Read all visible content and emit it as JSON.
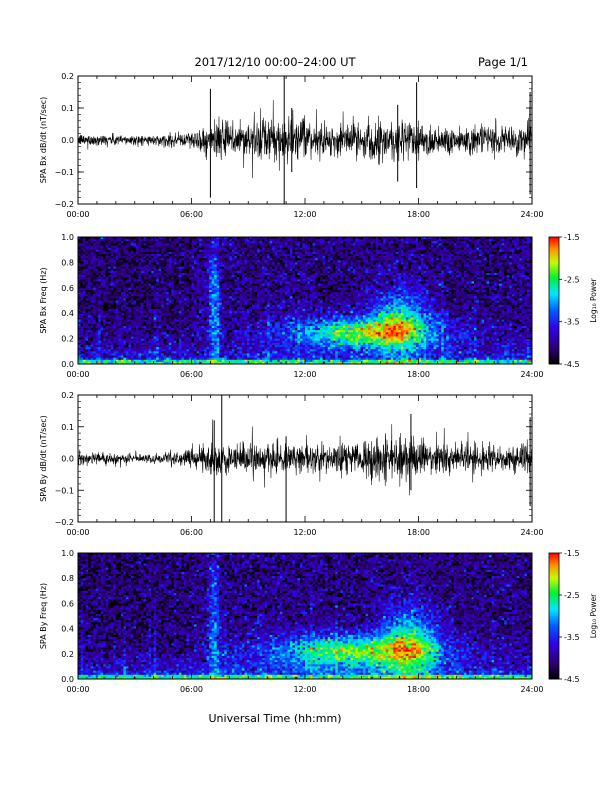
{
  "header": {
    "title": "2017/12/10   00:00–24:00 UT",
    "page": "Page 1/1"
  },
  "xlabel": "Universal Time (hh:mm)",
  "x_tick_labels": [
    "00:00",
    "06:00",
    "12:00",
    "18:00",
    "24:00"
  ],
  "chart_data": [
    {
      "type": "line",
      "ylabel": "SPA Bx dB/dt (nT/sec)",
      "xlim": [
        0,
        24
      ],
      "ylim": [
        -0.2,
        0.2
      ],
      "y_tick_labels": [
        "0.2",
        "0.1",
        "0.0",
        "−0.1",
        "−0.2"
      ],
      "series": [
        {
          "x": [
            0,
            2,
            4,
            6,
            7.3,
            9,
            10.9,
            12,
            13.5,
            15,
            16,
            17,
            17.7,
            19,
            21,
            22.5,
            24
          ],
          "amplitude": [
            0.02,
            0.02,
            0.015,
            0.03,
            0.06,
            0.07,
            0.08,
            0.06,
            0.05,
            0.06,
            0.07,
            0.08,
            0.07,
            0.05,
            0.05,
            0.04,
            0.06
          ],
          "spikes": [
            {
              "x": 7.0,
              "min": -0.18,
              "max": 0.16
            },
            {
              "x": 10.9,
              "min": -0.2,
              "max": 0.2
            },
            {
              "x": 11.3,
              "min": -0.1,
              "max": 0.1
            },
            {
              "x": 16.9,
              "min": -0.13,
              "max": 0.11
            },
            {
              "x": 17.9,
              "min": -0.15,
              "max": 0.18
            },
            {
              "x": 23.9,
              "min": -0.17,
              "max": 0.15
            }
          ]
        }
      ]
    },
    {
      "type": "heatmap",
      "ylabel": "SPA Bx Freq (Hz)",
      "xlim": [
        0,
        24
      ],
      "ylim": [
        0,
        1
      ],
      "y_tick_labels": [
        "1.0",
        "0.8",
        "0.6",
        "0.4",
        "0.2",
        "0.0"
      ],
      "colorbar": {
        "label": "Log₁₀ Power",
        "min": -4.5,
        "max": -1.5,
        "tick_labels": [
          "-1.5",
          "-2.5",
          "-3.5",
          "-4.5"
        ]
      },
      "activity": [
        {
          "x_center": 15,
          "x_width": 4,
          "f_center": 0.25,
          "f_width": 0.12,
          "level": -2.6
        },
        {
          "x_center": 17,
          "x_width": 1.5,
          "f_center": 0.35,
          "f_width": 0.25,
          "level": -3.1
        },
        {
          "x_center": 7.2,
          "x_width": 0.3,
          "f_center": 0.5,
          "f_width": 0.5,
          "level": -3.4
        }
      ]
    },
    {
      "type": "line",
      "ylabel": "SPA By dB/dt (nT/sec)",
      "xlim": [
        0,
        24
      ],
      "ylim": [
        -0.2,
        0.2
      ],
      "y_tick_labels": [
        "0.2",
        "0.1",
        "0.0",
        "−0.1",
        "−0.2"
      ],
      "series": [
        {
          "x": [
            0,
            2,
            4,
            6,
            7.3,
            9,
            10.9,
            12,
            13.5,
            15,
            16,
            17,
            17.7,
            19,
            21,
            22.5,
            24
          ],
          "amplitude": [
            0.02,
            0.02,
            0.015,
            0.03,
            0.06,
            0.05,
            0.06,
            0.05,
            0.05,
            0.06,
            0.08,
            0.08,
            0.06,
            0.05,
            0.05,
            0.04,
            0.06
          ],
          "spikes": [
            {
              "x": 7.2,
              "min": -0.2,
              "max": 0.12
            },
            {
              "x": 7.6,
              "min": -0.2,
              "max": 0.2
            },
            {
              "x": 11.0,
              "min": -0.2,
              "max": 0.07
            },
            {
              "x": 17.6,
              "min": -0.1,
              "max": 0.14
            },
            {
              "x": 23.9,
              "min": -0.15,
              "max": 0.13
            }
          ]
        }
      ]
    },
    {
      "type": "heatmap",
      "ylabel": "SPA By Freq (Hz)",
      "xlim": [
        0,
        24
      ],
      "ylim": [
        0,
        1
      ],
      "y_tick_labels": [
        "1.0",
        "0.8",
        "0.6",
        "0.4",
        "0.2",
        "0.0"
      ],
      "colorbar": {
        "label": "Log₁₀ Power",
        "min": -4.5,
        "max": -1.5,
        "tick_labels": [
          "-1.5",
          "-2.5",
          "-3.5",
          "-4.5"
        ]
      },
      "activity": [
        {
          "x_center": 14.5,
          "x_width": 4.5,
          "f_center": 0.22,
          "f_width": 0.13,
          "level": -2.6
        },
        {
          "x_center": 17.5,
          "x_width": 1.5,
          "f_center": 0.3,
          "f_width": 0.28,
          "level": -3.0
        },
        {
          "x_center": 7.2,
          "x_width": 0.3,
          "f_center": 0.5,
          "f_width": 0.5,
          "level": -3.4
        }
      ]
    }
  ]
}
